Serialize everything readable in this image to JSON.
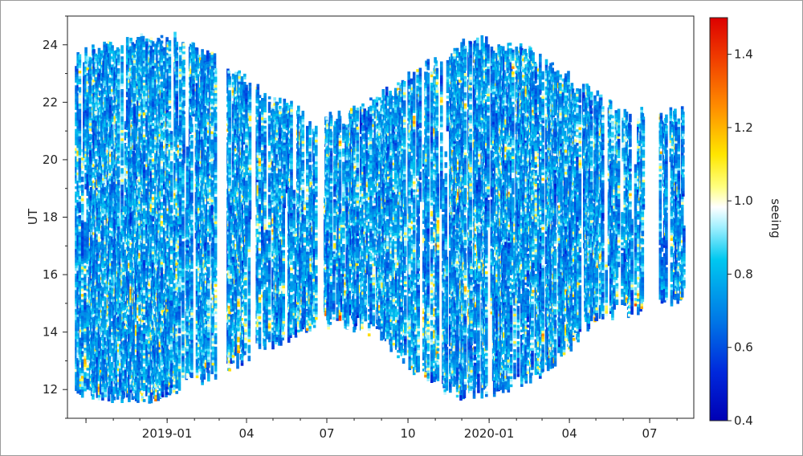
{
  "chart_data": {
    "type": "heatmap",
    "title": "",
    "xlabel": "",
    "ylabel": "UT",
    "x_ticks": [
      {
        "date": "2018-10-01",
        "label": ""
      },
      {
        "date": "2019-01-01",
        "label": "2019-01"
      },
      {
        "date": "2019-04-01",
        "label": "04"
      },
      {
        "date": "2019-07-01",
        "label": "07"
      },
      {
        "date": "2019-10-01",
        "label": "10"
      },
      {
        "date": "2020-01-01",
        "label": "2020-01"
      },
      {
        "date": "2020-04-01",
        "label": "04"
      },
      {
        "date": "2020-07-01",
        "label": "07"
      }
    ],
    "xlim": [
      "2018-09-10",
      "2020-08-20"
    ],
    "ylim": [
      11,
      25
    ],
    "y_ticks": [
      12,
      14,
      16,
      18,
      20,
      22,
      24
    ],
    "colorbar": {
      "label": "seeing",
      "range": [
        0.4,
        1.5
      ],
      "ticks": [
        0.4,
        0.6,
        0.8,
        1.0,
        1.2,
        1.4
      ],
      "colormap": "jet-like (blue → cyan → white → yellow → red)"
    },
    "observing_window": {
      "description": "nightly UT coverage; night start and end vary with season",
      "night_start_ut": [
        {
          "date": "2018-09-15",
          "ut": 11.7
        },
        {
          "date": "2018-12-01",
          "ut": 11.4
        },
        {
          "date": "2019-01-15",
          "ut": 11.8
        },
        {
          "date": "2019-03-01",
          "ut": 12.4
        },
        {
          "date": "2019-05-01",
          "ut": 13.3
        },
        {
          "date": "2019-06-01",
          "ut": 13.8
        },
        {
          "date": "2019-07-15",
          "ut": 14.2
        },
        {
          "date": "2019-09-01",
          "ut": 13.6
        },
        {
          "date": "2019-10-15",
          "ut": 12.3
        },
        {
          "date": "2019-12-01",
          "ut": 11.5
        },
        {
          "date": "2020-01-15",
          "ut": 11.8
        },
        {
          "date": "2020-03-01",
          "ut": 12.3
        },
        {
          "date": "2020-05-01",
          "ut": 14.2
        },
        {
          "date": "2020-08-10",
          "ut": 15.0
        }
      ],
      "night_end_ut": [
        {
          "date": "2018-09-15",
          "ut": 23.8
        },
        {
          "date": "2018-12-01",
          "ut": 24.4
        },
        {
          "date": "2019-01-15",
          "ut": 24.4
        },
        {
          "date": "2019-03-01",
          "ut": 23.6
        },
        {
          "date": "2019-05-01",
          "ut": 22.3
        },
        {
          "date": "2019-06-15",
          "ut": 21.6
        },
        {
          "date": "2019-08-01",
          "ut": 21.8
        },
        {
          "date": "2019-10-01",
          "ut": 23.0
        },
        {
          "date": "2019-12-15",
          "ut": 24.4
        },
        {
          "date": "2020-02-01",
          "ut": 24.2
        },
        {
          "date": "2020-04-01",
          "ut": 23.0
        },
        {
          "date": "2020-06-01",
          "ut": 21.8
        },
        {
          "date": "2020-08-10",
          "ut": 21.8
        }
      ]
    },
    "gaps": [
      {
        "start": "2019-02-27",
        "end": "2019-03-10"
      },
      {
        "start": "2019-04-06",
        "end": "2019-04-12"
      },
      {
        "start": "2019-06-20",
        "end": "2019-06-28"
      },
      {
        "start": "2020-06-25",
        "end": "2020-07-12"
      }
    ],
    "value_distribution": {
      "most_common_range": [
        0.5,
        0.8
      ],
      "occasional_range": [
        0.9,
        1.5
      ]
    },
    "grid": false,
    "legend": "colorbar-right"
  }
}
